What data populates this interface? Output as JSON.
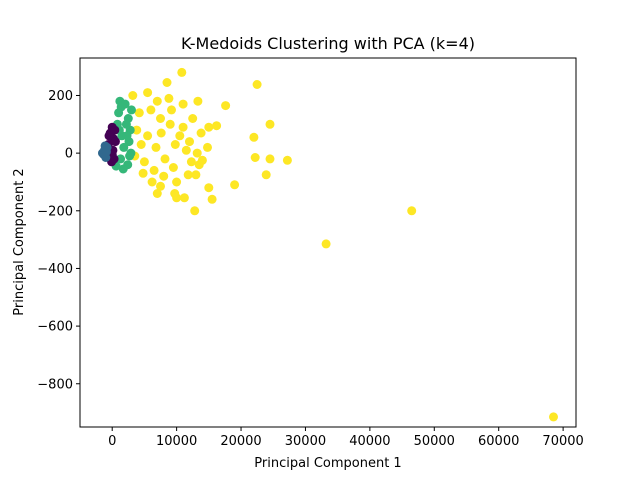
{
  "chart_data": {
    "type": "scatter",
    "title": "K-Medoids Clustering with PCA (k=4)",
    "xlabel": "Principal Component 1",
    "ylabel": "Principal Component 2",
    "xlim": [
      -5000,
      72000
    ],
    "ylim": [
      -950,
      330
    ],
    "xticks": [
      0,
      10000,
      20000,
      30000,
      40000,
      50000,
      60000,
      70000
    ],
    "yticks": [
      -800,
      -600,
      -400,
      -200,
      0,
      200
    ],
    "xtick_labels": [
      "0",
      "10000",
      "20000",
      "30000",
      "40000",
      "50000",
      "60000",
      "70000"
    ],
    "ytick_labels": [
      "−800",
      "−600",
      "−400",
      "−200",
      "0",
      "200"
    ],
    "grid": false,
    "legend": "none",
    "series": [
      {
        "color": "#fde725",
        "points": [
          [
            10800,
            280
          ],
          [
            22500,
            238
          ],
          [
            8500,
            245
          ],
          [
            3200,
            200
          ],
          [
            5500,
            210
          ],
          [
            13300,
            180
          ],
          [
            11000,
            170
          ],
          [
            17600,
            165
          ],
          [
            24500,
            100
          ],
          [
            22000,
            55
          ],
          [
            15000,
            90
          ],
          [
            16200,
            95
          ],
          [
            14800,
            20
          ],
          [
            22200,
            -15
          ],
          [
            24500,
            -20
          ],
          [
            27200,
            -25
          ],
          [
            23900,
            -75
          ],
          [
            15000,
            -120
          ],
          [
            19000,
            -110
          ],
          [
            15500,
            -160
          ],
          [
            12800,
            -200
          ],
          [
            10000,
            -155
          ],
          [
            11200,
            -155
          ],
          [
            9700,
            -140
          ],
          [
            7000,
            -140
          ],
          [
            7500,
            -115
          ],
          [
            13000,
            -75
          ],
          [
            11800,
            -75
          ],
          [
            13500,
            -40
          ],
          [
            14000,
            -25
          ],
          [
            46500,
            -200
          ],
          [
            33200,
            -315
          ],
          [
            68500,
            -915
          ],
          [
            6000,
            150
          ],
          [
            7500,
            120
          ],
          [
            9000,
            100
          ],
          [
            10500,
            60
          ],
          [
            12000,
            40
          ],
          [
            4500,
            30
          ],
          [
            5000,
            -30
          ],
          [
            6500,
            -60
          ],
          [
            8000,
            -80
          ],
          [
            9500,
            -50
          ],
          [
            11500,
            10
          ],
          [
            3800,
            80
          ],
          [
            4200,
            140
          ],
          [
            7000,
            180
          ],
          [
            8800,
            190
          ],
          [
            12500,
            120
          ],
          [
            13800,
            70
          ],
          [
            10000,
            -100
          ],
          [
            5500,
            60
          ],
          [
            6800,
            20
          ],
          [
            8200,
            -20
          ],
          [
            9800,
            30
          ],
          [
            7600,
            70
          ],
          [
            11000,
            90
          ],
          [
            4800,
            -70
          ],
          [
            3500,
            -10
          ],
          [
            6200,
            -100
          ],
          [
            12300,
            -30
          ],
          [
            13200,
            0
          ],
          [
            9200,
            150
          ]
        ]
      },
      {
        "color": "#35b779",
        "points": [
          [
            1200,
            180
          ],
          [
            2000,
            170
          ],
          [
            1000,
            140
          ],
          [
            2500,
            120
          ],
          [
            800,
            100
          ],
          [
            2800,
            80
          ],
          [
            1500,
            60
          ],
          [
            2600,
            40
          ],
          [
            1800,
            20
          ],
          [
            2900,
            0
          ],
          [
            1300,
            -20
          ],
          [
            2400,
            -40
          ],
          [
            1700,
            -55
          ],
          [
            600,
            -45
          ],
          [
            3000,
            150
          ],
          [
            2200,
            100
          ],
          [
            1100,
            80
          ],
          [
            2700,
            -10
          ],
          [
            1400,
            160
          ],
          [
            2300,
            60
          ]
        ]
      },
      {
        "color": "#440154",
        "points": [
          [
            0,
            90
          ],
          [
            -300,
            70
          ],
          [
            200,
            50
          ],
          [
            -600,
            30
          ],
          [
            100,
            10
          ],
          [
            -200,
            -10
          ],
          [
            300,
            -20
          ],
          [
            -500,
            60
          ],
          [
            400,
            80
          ],
          [
            -100,
            -30
          ],
          [
            500,
            40
          ],
          [
            0,
            -5
          ]
        ]
      },
      {
        "color": "#31688e",
        "points": [
          [
            -1500,
            0
          ],
          [
            -1200,
            10
          ],
          [
            -1000,
            -15
          ],
          [
            -800,
            20
          ],
          [
            -1300,
            -5
          ],
          [
            -900,
            5
          ],
          [
            -1100,
            25
          ]
        ]
      }
    ]
  }
}
